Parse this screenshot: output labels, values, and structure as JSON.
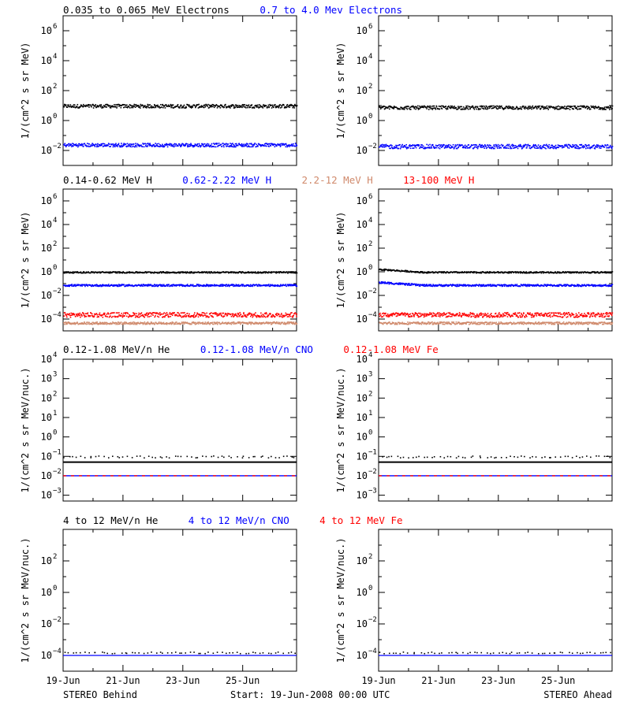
{
  "colors": {
    "black": "#000000",
    "blue": "#0000ff",
    "tan": "#d08a6c",
    "red": "#ff0000",
    "background": "#ffffff"
  },
  "footer": {
    "left": "STEREO Behind",
    "center": "Start: 19-Jun-2008 00:00 UTC",
    "right": "STEREO Ahead"
  },
  "x_ticks": [
    "19-Jun",
    "21-Jun",
    "23-Jun",
    "25-Jun"
  ],
  "rows": [
    {
      "ylabel": "1/(cm^2 s sr MeV)",
      "ylim_log10": [
        -3,
        7
      ],
      "yticks_exp": [
        -2,
        0,
        2,
        4,
        6
      ],
      "legend": [
        {
          "text": "0.035 to 0.065 MeV Electrons",
          "color": "black"
        },
        {
          "text": "0.7 to 4.0 Mev Electrons",
          "color": "blue"
        }
      ]
    },
    {
      "ylabel": "1/(cm^2 s sr MeV)",
      "ylim_log10": [
        -5,
        7
      ],
      "yticks_exp": [
        -4,
        -2,
        0,
        2,
        4,
        6
      ],
      "legend": [
        {
          "text": "0.14-0.62 MeV H",
          "color": "black"
        },
        {
          "text": "0.62-2.22 MeV H",
          "color": "blue"
        },
        {
          "text": "2.2-12 MeV H",
          "color": "tan"
        },
        {
          "text": "13-100 MeV H",
          "color": "red"
        }
      ]
    },
    {
      "ylabel": "1/(cm^2 s sr MeV/nuc.)",
      "ylim_log10": [
        -3.3,
        4
      ],
      "yticks_exp": [
        -3,
        -2,
        -1,
        0,
        1,
        2,
        3,
        4
      ],
      "legend": [
        {
          "text": "0.12-1.08 MeV/n He",
          "color": "black"
        },
        {
          "text": "0.12-1.08 MeV/n CNO",
          "color": "blue"
        },
        {
          "text": "0.12-1.08 MeV Fe",
          "color": "red"
        }
      ]
    },
    {
      "ylabel": "1/(cm^2 s sr MeV/nuc.)",
      "ylim_log10": [
        -5,
        4
      ],
      "yticks_exp": [
        -4,
        -2,
        0,
        2
      ],
      "legend": [
        {
          "text": "4 to 12 MeV/n He",
          "color": "black"
        },
        {
          "text": "4 to 12 MeV/n CNO",
          "color": "blue"
        },
        {
          "text": "4 to 12 MeV Fe",
          "color": "red"
        }
      ]
    }
  ],
  "chart_data": [
    {
      "type": "scatter",
      "panel": "behind-electrons",
      "x_range_days": [
        0,
        7.8
      ],
      "log_y": true,
      "series": [
        {
          "color": "black",
          "level_log10": 1.0,
          "spread": 0.12
        },
        {
          "color": "blue",
          "level_log10": -1.6,
          "spread": 0.12
        }
      ]
    },
    {
      "type": "scatter",
      "panel": "ahead-electrons",
      "x_range_days": [
        0,
        7.8
      ],
      "log_y": true,
      "series": [
        {
          "color": "black",
          "level_log10": 0.9,
          "spread": 0.12
        },
        {
          "color": "blue",
          "level_log10": -1.7,
          "spread": 0.14
        }
      ]
    },
    {
      "type": "scatter",
      "panel": "behind-protons",
      "x_range_days": [
        0,
        7.8
      ],
      "log_y": true,
      "series": [
        {
          "color": "black",
          "level_log10": 0.0,
          "spread": 0.06
        },
        {
          "color": "blue",
          "level_log10": -1.1,
          "spread": 0.08
        },
        {
          "color": "red",
          "level_log10": -3.6,
          "spread": 0.2
        },
        {
          "color": "tan",
          "level_log10": -4.3,
          "spread": 0.1
        }
      ]
    },
    {
      "type": "scatter",
      "panel": "ahead-protons",
      "x_range_days": [
        0,
        7.8
      ],
      "log_y": true,
      "series": [
        {
          "color": "black",
          "level_log10": 0.0,
          "spread": 0.06,
          "start_boost": 0.25
        },
        {
          "color": "blue",
          "level_log10": -1.1,
          "spread": 0.08,
          "start_boost": 0.25
        },
        {
          "color": "red",
          "level_log10": -3.6,
          "spread": 0.2
        },
        {
          "color": "tan",
          "level_log10": -4.3,
          "spread": 0.1
        }
      ]
    },
    {
      "type": "scatter",
      "panel": "behind-heavy-low",
      "x_range_days": [
        0,
        7.8
      ],
      "log_y": true,
      "lines": [
        {
          "color": "black",
          "value_log10": -1.3
        },
        {
          "color": "blue",
          "value_log10": -2.0
        },
        {
          "color": "red",
          "value_log10": -2.0
        }
      ],
      "series": [
        {
          "color": "black",
          "level_log10": -1.0,
          "spread": 0.05,
          "sparse": true
        }
      ]
    },
    {
      "type": "scatter",
      "panel": "ahead-heavy-low",
      "x_range_days": [
        0,
        7.8
      ],
      "log_y": true,
      "lines": [
        {
          "color": "black",
          "value_log10": -1.3
        },
        {
          "color": "blue",
          "value_log10": -2.0
        },
        {
          "color": "red",
          "value_log10": -2.0
        }
      ],
      "series": [
        {
          "color": "black",
          "level_log10": -1.0,
          "spread": 0.05,
          "sparse": true
        }
      ]
    },
    {
      "type": "scatter",
      "panel": "behind-heavy-high",
      "x_range_days": [
        0,
        7.8
      ],
      "log_y": true,
      "lines": [
        {
          "color": "blue",
          "value_log10": -4.0
        }
      ],
      "series": [
        {
          "color": "black",
          "level_log10": -3.8,
          "spread": 0.05,
          "sparse": true
        }
      ]
    },
    {
      "type": "scatter",
      "panel": "ahead-heavy-high",
      "x_range_days": [
        0,
        7.8
      ],
      "log_y": true,
      "lines": [
        {
          "color": "blue",
          "value_log10": -4.0
        }
      ],
      "series": [
        {
          "color": "black",
          "level_log10": -3.8,
          "spread": 0.05,
          "sparse": true
        }
      ]
    }
  ]
}
